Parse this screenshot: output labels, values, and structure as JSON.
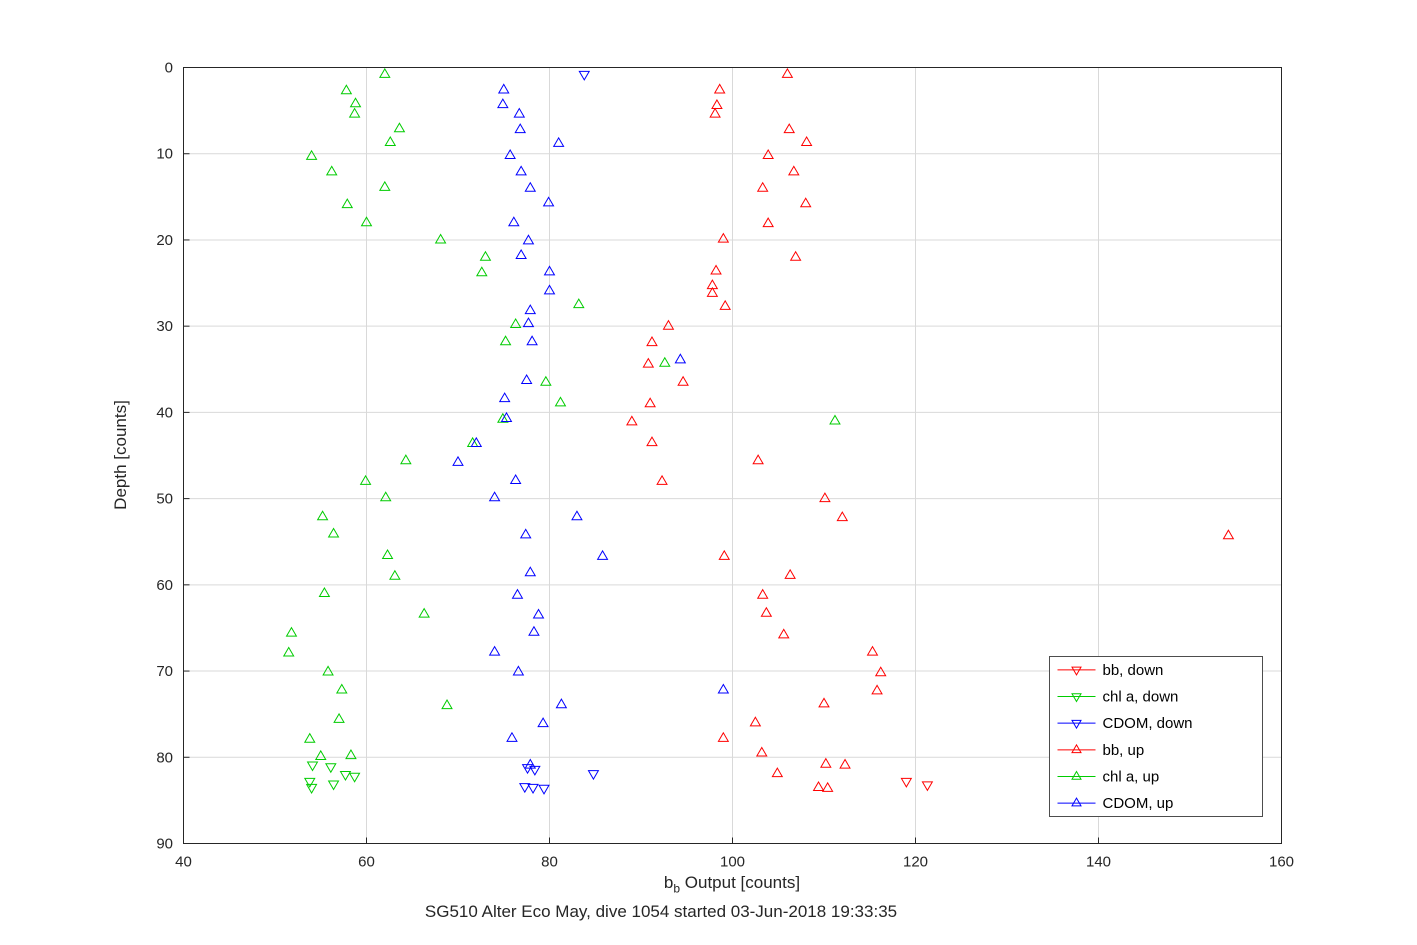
{
  "chart_data": {
    "type": "scatter",
    "title": "SG510 Alter Eco May, dive 1054 started 03-Jun-2018 19:33:35",
    "xlabel": "b_b Output [counts]",
    "xlabel_parts": {
      "base": "b",
      "sub": "b",
      "rest": " Output [counts]"
    },
    "ylabel": "Depth [counts]",
    "xlim": [
      40,
      160
    ],
    "ylim": [
      0,
      90
    ],
    "y_axis_reversed": true,
    "xticks": [
      40,
      60,
      80,
      100,
      120,
      140,
      160
    ],
    "yticks": [
      0,
      10,
      20,
      30,
      40,
      50,
      60,
      70,
      80,
      90
    ],
    "grid": true,
    "grid_color": "#d9d9d9",
    "axis_color": "#262626",
    "legend": {
      "position": "lower right inside",
      "border": true
    },
    "series": [
      {
        "name": "bb, down",
        "color": "#ff0000",
        "marker": "triangle-down",
        "points": [
          [
            119.0,
            82.8
          ],
          [
            121.3,
            83.2
          ]
        ]
      },
      {
        "name": "chl a, down",
        "color": "#00cc00",
        "marker": "triangle-down",
        "points": [
          [
            54.1,
            80.9
          ],
          [
            56.1,
            81.1
          ],
          [
            57.7,
            82.0
          ],
          [
            58.7,
            82.2
          ],
          [
            53.8,
            82.8
          ],
          [
            56.4,
            83.1
          ],
          [
            54.0,
            83.5
          ]
        ]
      },
      {
        "name": "CDOM, down",
        "color": "#0000ff",
        "marker": "triangle-down",
        "points": [
          [
            83.8,
            0.8
          ],
          [
            77.6,
            81.2
          ],
          [
            78.4,
            81.4
          ],
          [
            84.8,
            81.9
          ],
          [
            77.3,
            83.4
          ],
          [
            78.2,
            83.5
          ],
          [
            79.4,
            83.6
          ]
        ]
      },
      {
        "name": "bb, up",
        "color": "#ff0000",
        "marker": "triangle-up",
        "points": [
          [
            106.0,
            0.8
          ],
          [
            98.6,
            2.6
          ],
          [
            98.3,
            4.4
          ],
          [
            98.1,
            5.4
          ],
          [
            106.2,
            7.2
          ],
          [
            108.1,
            8.7
          ],
          [
            103.9,
            10.2
          ],
          [
            106.7,
            12.1
          ],
          [
            103.3,
            14.0
          ],
          [
            108.0,
            15.8
          ],
          [
            103.9,
            18.1
          ],
          [
            99.0,
            19.9
          ],
          [
            106.9,
            22.0
          ],
          [
            98.2,
            23.6
          ],
          [
            97.8,
            25.3
          ],
          [
            97.8,
            26.2
          ],
          [
            99.2,
            27.7
          ],
          [
            93.0,
            30.0
          ],
          [
            91.2,
            31.9
          ],
          [
            90.8,
            34.4
          ],
          [
            94.6,
            36.5
          ],
          [
            91.0,
            39.0
          ],
          [
            89.0,
            41.1
          ],
          [
            91.2,
            43.5
          ],
          [
            102.8,
            45.6
          ],
          [
            92.3,
            48.0
          ],
          [
            110.1,
            50.0
          ],
          [
            112.0,
            52.2
          ],
          [
            154.2,
            54.3
          ],
          [
            99.1,
            56.7
          ],
          [
            106.3,
            58.9
          ],
          [
            103.3,
            61.2
          ],
          [
            103.7,
            63.3
          ],
          [
            105.6,
            65.8
          ],
          [
            115.3,
            67.8
          ],
          [
            116.2,
            70.2
          ],
          [
            115.8,
            72.3
          ],
          [
            110.0,
            73.8
          ],
          [
            102.5,
            76.0
          ],
          [
            99.0,
            77.8
          ],
          [
            103.2,
            79.5
          ],
          [
            110.2,
            80.8
          ],
          [
            112.3,
            80.9
          ],
          [
            104.9,
            81.9
          ],
          [
            109.4,
            83.5
          ],
          [
            110.4,
            83.6
          ]
        ]
      },
      {
        "name": "chl a, up",
        "color": "#00cc00",
        "marker": "triangle-up",
        "points": [
          [
            62.0,
            0.8
          ],
          [
            57.8,
            2.7
          ],
          [
            58.8,
            4.2
          ],
          [
            58.7,
            5.4
          ],
          [
            63.6,
            7.1
          ],
          [
            62.6,
            8.7
          ],
          [
            54.0,
            10.3
          ],
          [
            56.2,
            12.1
          ],
          [
            62.0,
            13.9
          ],
          [
            57.9,
            15.9
          ],
          [
            60.0,
            18.0
          ],
          [
            68.1,
            20.0
          ],
          [
            73.0,
            22.0
          ],
          [
            72.6,
            23.8
          ],
          [
            83.2,
            27.5
          ],
          [
            76.3,
            29.8
          ],
          [
            75.2,
            31.8
          ],
          [
            92.6,
            34.3
          ],
          [
            79.6,
            36.5
          ],
          [
            81.2,
            38.9
          ],
          [
            74.9,
            40.8
          ],
          [
            111.2,
            41.0
          ],
          [
            71.6,
            43.6
          ],
          [
            64.3,
            45.6
          ],
          [
            59.9,
            48.0
          ],
          [
            62.1,
            49.9
          ],
          [
            55.2,
            52.1
          ],
          [
            56.4,
            54.1
          ],
          [
            62.3,
            56.6
          ],
          [
            63.1,
            59.0
          ],
          [
            55.4,
            61.0
          ],
          [
            66.3,
            63.4
          ],
          [
            51.8,
            65.6
          ],
          [
            51.5,
            67.9
          ],
          [
            55.8,
            70.1
          ],
          [
            57.3,
            72.2
          ],
          [
            68.8,
            74.0
          ],
          [
            57.0,
            75.6
          ],
          [
            53.8,
            77.9
          ],
          [
            55.0,
            79.9
          ],
          [
            58.3,
            79.8
          ]
        ]
      },
      {
        "name": "CDOM, up",
        "color": "#0000ff",
        "marker": "triangle-up",
        "points": [
          [
            75.0,
            2.6
          ],
          [
            74.9,
            4.3
          ],
          [
            76.7,
            5.4
          ],
          [
            76.8,
            7.2
          ],
          [
            81.0,
            8.8
          ],
          [
            75.7,
            10.2
          ],
          [
            76.9,
            12.1
          ],
          [
            77.9,
            14.0
          ],
          [
            79.9,
            15.7
          ],
          [
            76.1,
            18.0
          ],
          [
            77.7,
            20.1
          ],
          [
            76.9,
            21.8
          ],
          [
            80.0,
            23.7
          ],
          [
            80.0,
            25.9
          ],
          [
            77.9,
            28.2
          ],
          [
            77.7,
            29.7
          ],
          [
            78.1,
            31.8
          ],
          [
            94.3,
            33.9
          ],
          [
            77.5,
            36.3
          ],
          [
            75.1,
            38.4
          ],
          [
            75.3,
            40.7
          ],
          [
            72.0,
            43.6
          ],
          [
            70.0,
            45.8
          ],
          [
            76.3,
            47.9
          ],
          [
            74.0,
            49.9
          ],
          [
            83.0,
            52.1
          ],
          [
            77.4,
            54.2
          ],
          [
            85.8,
            56.7
          ],
          [
            77.9,
            58.6
          ],
          [
            76.5,
            61.2
          ],
          [
            78.8,
            63.5
          ],
          [
            78.3,
            65.5
          ],
          [
            74.0,
            67.8
          ],
          [
            76.6,
            70.1
          ],
          [
            99.0,
            72.2
          ],
          [
            81.3,
            73.9
          ],
          [
            79.3,
            76.1
          ],
          [
            75.9,
            77.8
          ],
          [
            77.9,
            80.9
          ]
        ]
      }
    ]
  }
}
